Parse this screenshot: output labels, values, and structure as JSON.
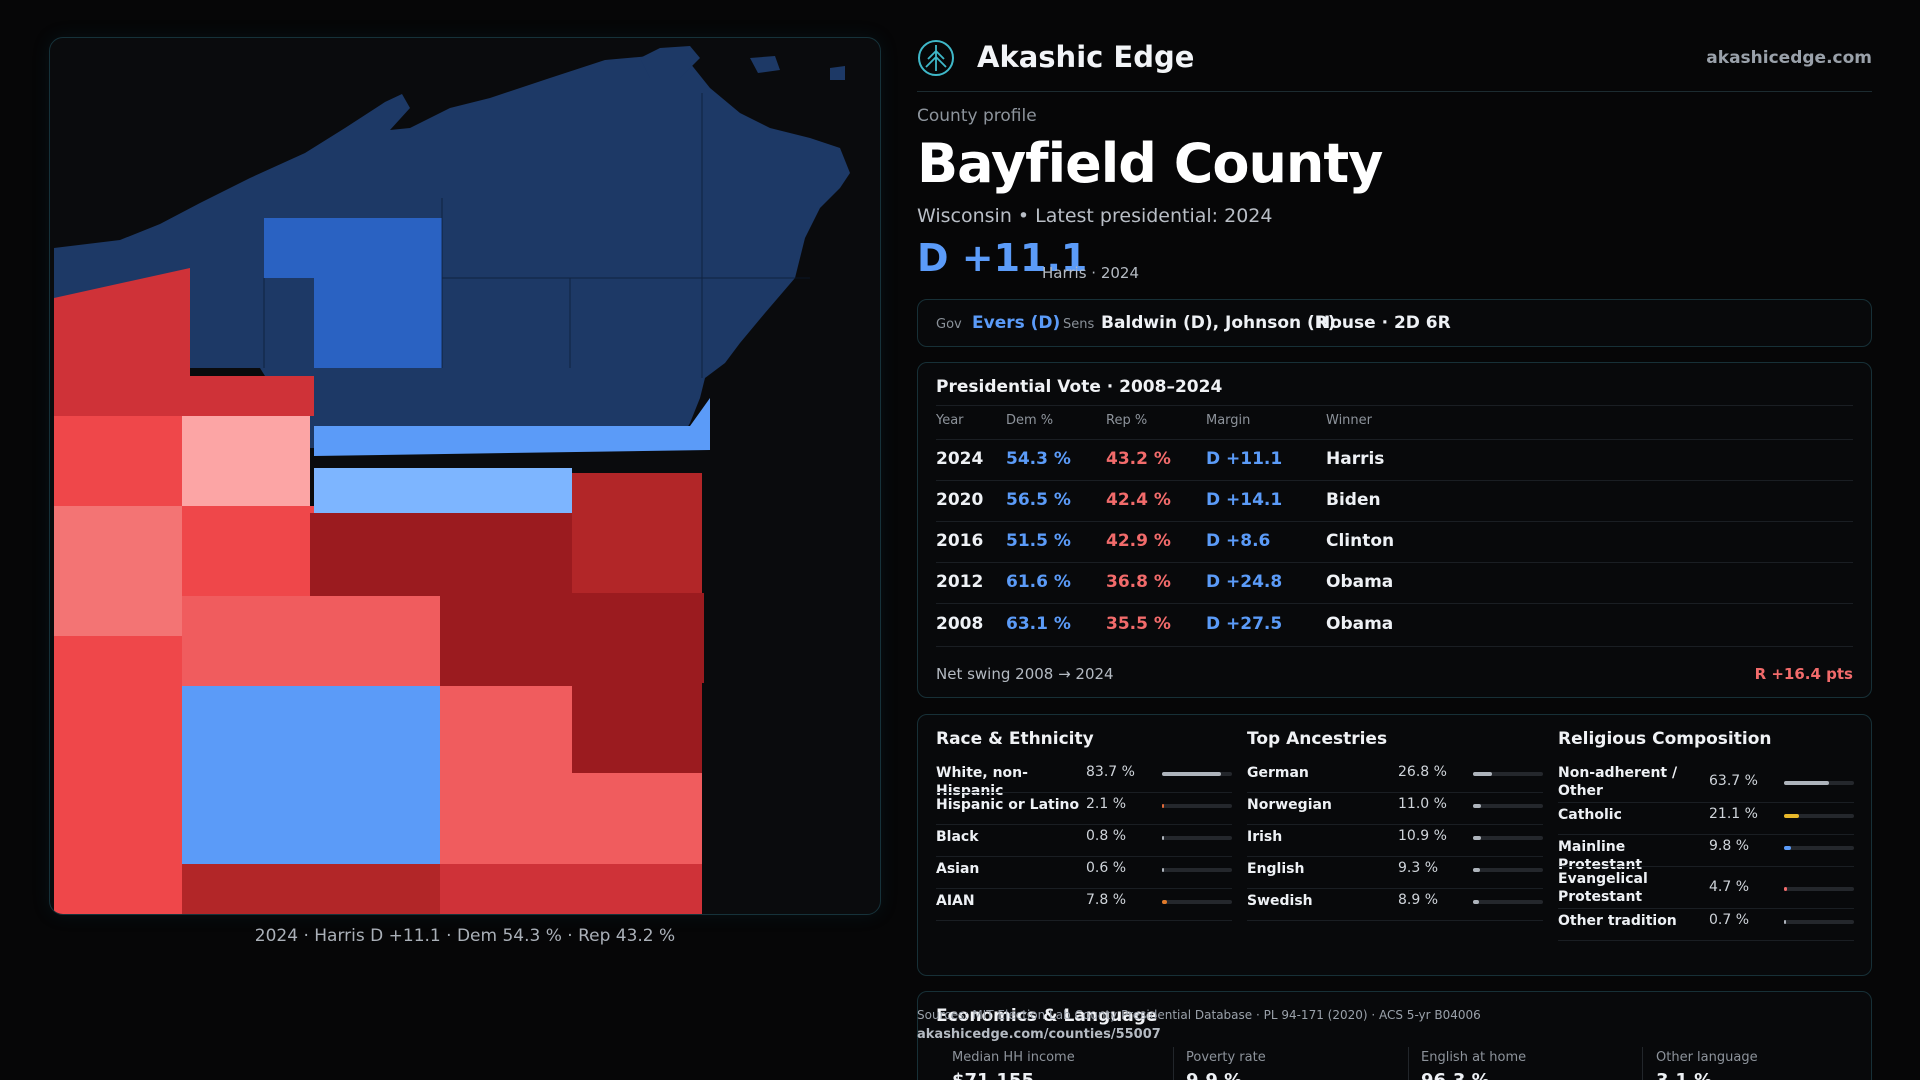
{
  "brand": {
    "name": "Akashic Edge",
    "site": "akashicedge.com",
    "logo_icon": "tree-logo-icon"
  },
  "header": {
    "kicker": "County profile",
    "title": "Bayfield County",
    "subtitle": "Wisconsin • Latest presidential: 2024",
    "margin": "D +11.1",
    "margin_note": "Harris · 2024"
  },
  "officials": {
    "gov_label": "Gov",
    "gov_value": "Evers (D)",
    "sens_label": "Sens",
    "sens_value": "Baldwin (D), Johnson (R)",
    "house": "House · 2D 6R"
  },
  "presidential": {
    "title": "Presidential Vote · 2008–2024",
    "columns": [
      "Year",
      "Dem %",
      "Rep %",
      "Margin",
      "Winner"
    ],
    "rows": [
      {
        "year": "2024",
        "dem": "54.3 %",
        "rep": "43.2 %",
        "margin": "D +11.1",
        "winner": "Harris"
      },
      {
        "year": "2020",
        "dem": "56.5 %",
        "rep": "42.4 %",
        "margin": "D +14.1",
        "winner": "Biden"
      },
      {
        "year": "2016",
        "dem": "51.5 %",
        "rep": "42.9 %",
        "margin": "D +8.6",
        "winner": "Clinton"
      },
      {
        "year": "2012",
        "dem": "61.6 %",
        "rep": "36.8 %",
        "margin": "D +24.8",
        "winner": "Obama"
      },
      {
        "year": "2008",
        "dem": "63.1 %",
        "rep": "35.5 %",
        "margin": "D +27.5",
        "winner": "Obama"
      }
    ],
    "swing_label": "Net swing 2008 → 2024",
    "swing_value": "R +16.4 pts"
  },
  "race": {
    "title": "Race & Ethnicity",
    "items": [
      {
        "label": "White, non-Hispanic",
        "value": "83.7 %",
        "pct": 83.7,
        "color": "#aeb4bc"
      },
      {
        "label": "Hispanic or Latino",
        "value": "2.1 %",
        "pct": 2.1,
        "color": "#e06a3a"
      },
      {
        "label": "Black",
        "value": "0.8 %",
        "pct": 0.8,
        "color": "#aeb4bc"
      },
      {
        "label": "Asian",
        "value": "0.6 %",
        "pct": 0.6,
        "color": "#aeb4bc"
      },
      {
        "label": "AIAN",
        "value": "7.8 %",
        "pct": 7.8,
        "color": "#e07a2a"
      }
    ]
  },
  "ancestry": {
    "title": "Top Ancestries",
    "items": [
      {
        "label": "German",
        "value": "26.8 %",
        "pct": 26.8,
        "color": "#aeb4bc"
      },
      {
        "label": "Norwegian",
        "value": "11.0 %",
        "pct": 11.0,
        "color": "#aeb4bc"
      },
      {
        "label": "Irish",
        "value": "10.9 %",
        "pct": 10.9,
        "color": "#aeb4bc"
      },
      {
        "label": "English",
        "value": "9.3 %",
        "pct": 9.3,
        "color": "#aeb4bc"
      },
      {
        "label": "Swedish",
        "value": "8.9 %",
        "pct": 8.9,
        "color": "#aeb4bc"
      }
    ]
  },
  "religion": {
    "title": "Religious Composition",
    "items": [
      {
        "label": "Non-adherent / Other",
        "value": "63.7 %",
        "pct": 63.7,
        "color": "#aeb4bc"
      },
      {
        "label": "Catholic",
        "value": "21.1 %",
        "pct": 21.1,
        "color": "#e8b82a"
      },
      {
        "label": "Mainline Protestant",
        "value": "9.8 %",
        "pct": 9.8,
        "color": "#5b9bf8"
      },
      {
        "label": "Evangelical Protestant",
        "value": "4.7 %",
        "pct": 4.7,
        "color": "#f26b6b"
      },
      {
        "label": "Other tradition",
        "value": "0.7 %",
        "pct": 0.7,
        "color": "#aeb4bc"
      }
    ]
  },
  "economics": {
    "title": "Economics & Language",
    "cells": [
      {
        "label": "Median HH income",
        "value": "$71,155"
      },
      {
        "label": "Poverty rate",
        "value": "9.9 %"
      },
      {
        "label": "English at home",
        "value": "96.3 %"
      },
      {
        "label": "Other language",
        "value": "3.1 %"
      }
    ]
  },
  "source": {
    "text": "Sources: MIT Election Lab County Presidential Database · PL 94-171 (2020) · ACS 5-yr B04006",
    "url": "akashicedge.com/counties/55007"
  },
  "map": {
    "caption": "2024 · Harris D +11.1 · Dem 54.3 % · Rep 43.2 %",
    "colors": {
      "dark_blue": "#1d3966",
      "mid_blue": "#2a62c2",
      "light_blue": "#5b9bf8",
      "pale_blue": "#7db5ff",
      "dark_red": "#9b1b1f",
      "red": "#cf3238",
      "bright_red": "#ef474a",
      "salmon": "#f05c5e",
      "light_red": "#f37474",
      "pink": "#fca5a5"
    }
  }
}
